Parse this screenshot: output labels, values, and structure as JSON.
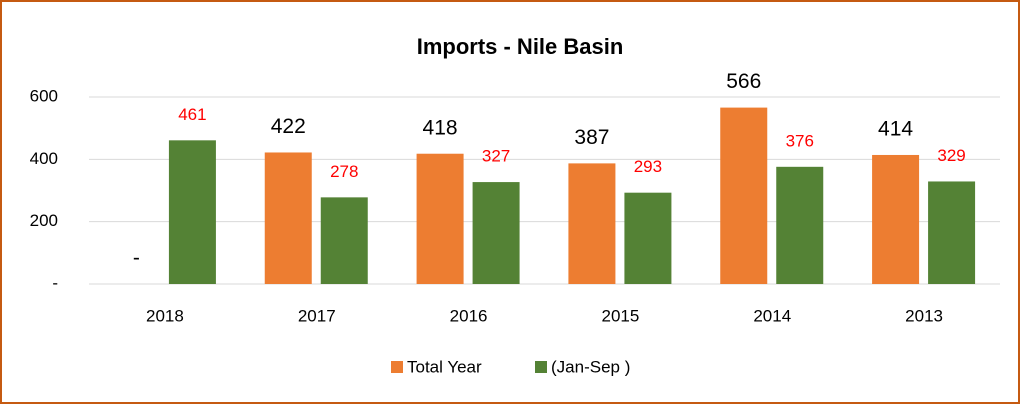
{
  "chart_data": {
    "type": "bar",
    "title": "Imports  - Nile Basin",
    "categories": [
      "2018",
      "2017",
      "2016",
      "2015",
      "2014",
      "2013"
    ],
    "series": [
      {
        "name": "Total Year",
        "color": "#ed7d31",
        "label_color": "#000000",
        "values": [
          0,
          422,
          418,
          387,
          566,
          414
        ],
        "value_labels": [
          "-",
          "422",
          "418",
          "387",
          "566",
          "414"
        ]
      },
      {
        "name": "(Jan-Sep )",
        "color": "#548235",
        "label_color": "#ff0000",
        "values": [
          461,
          278,
          327,
          293,
          376,
          329
        ]
      }
    ],
    "ylim": [
      0,
      600
    ],
    "yticks": [
      {
        "value": 0,
        "label": "-"
      },
      200,
      400,
      600
    ],
    "grid": true,
    "legend": "bottom"
  }
}
